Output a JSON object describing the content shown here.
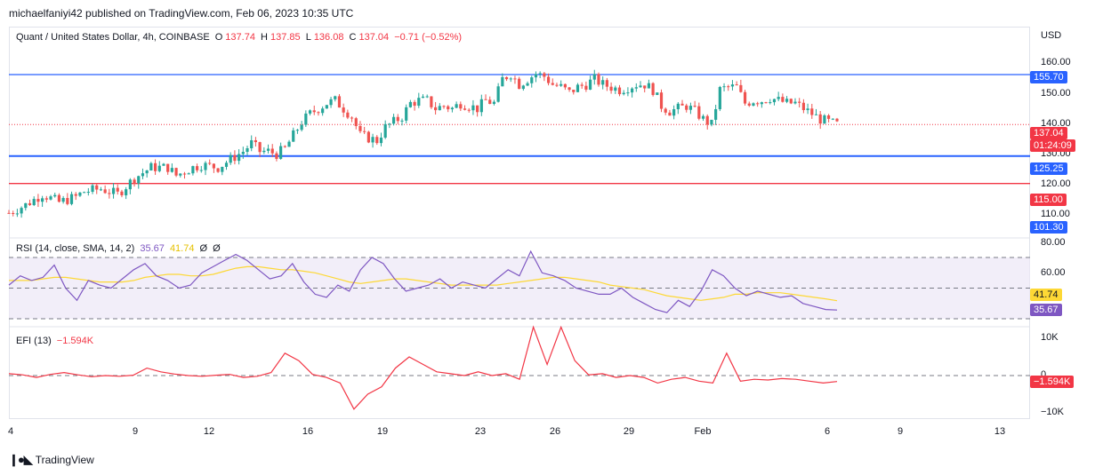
{
  "byline": "michaelfaniyi42 published on TradingView.com, Feb 06, 2023 10:35 UTC",
  "logo_text": "TradingView",
  "legend": {
    "symbol": "Quant / United States Dollar, 4h, COINBASE",
    "o_label": "O",
    "o_value": "137.74",
    "h_label": "H",
    "h_value": "137.85",
    "l_label": "L",
    "l_value": "136.08",
    "c_label": "C",
    "c_value": "137.04",
    "change": "−0.71 (−0.52%)"
  },
  "rsi_legend": {
    "name": "RSI (14, close, SMA, 14, 2)",
    "v1": "35.67",
    "v2": "41.74",
    "v3": "Ø",
    "v4": "Ø"
  },
  "efi_legend": {
    "name": "EFI (13)",
    "value": "−1.594K"
  },
  "price_axis": {
    "currency": "USD",
    "ticks": [
      "160.00",
      "150.00",
      "140.00",
      "130.00",
      "120.00",
      "110.00"
    ]
  },
  "rsi_axis": {
    "ticks": [
      "80.00",
      "60.00"
    ]
  },
  "efi_axis": {
    "ticks": [
      "10K",
      "0",
      "−10K"
    ]
  },
  "pills": {
    "level_155": "155.70",
    "last_price": "137.04",
    "countdown": "01:24:09",
    "level_125": "125.25",
    "level_115": "115.00",
    "level_101": "101.30",
    "rsi_sma": "41.74",
    "rsi_value": "35.67",
    "efi_value": "−1.594K"
  },
  "date_ticks": [
    "4",
    "9",
    "12",
    "16",
    "19",
    "23",
    "26",
    "29",
    "Feb",
    "6",
    "9",
    "13"
  ],
  "colors": {
    "up": "#26a69a",
    "down": "#ef5350",
    "support_blue": "#2962ff",
    "resistance_red": "#f23645",
    "rsi_line": "#7e57c2",
    "rsi_sma": "#fdd835",
    "efi_line": "#f23645",
    "rsi_band": "#ede7f6"
  },
  "chart_data": [
    {
      "type": "candlestick",
      "title": "Quant / United States Dollar, 4h, COINBASE",
      "ylabel": "USD",
      "ylim": [
        101.3,
        166.5
      ],
      "x_ticks": [
        "4",
        "9",
        "12",
        "16",
        "19",
        "23",
        "26",
        "29",
        "Feb",
        "6",
        "9",
        "13"
      ],
      "horizontal_levels": [
        155.7,
        125.25,
        115.0
      ],
      "last_price": 137.04,
      "close_path": [
        [
          0,
          104
        ],
        [
          4,
          107
        ],
        [
          8,
          111
        ],
        [
          12,
          108
        ],
        [
          16,
          110
        ],
        [
          18,
          112
        ],
        [
          22,
          113
        ],
        [
          24,
          112
        ],
        [
          26,
          111
        ],
        [
          28,
          114
        ],
        [
          30,
          117
        ],
        [
          32,
          119
        ],
        [
          34,
          121
        ],
        [
          38,
          121
        ],
        [
          40,
          118
        ],
        [
          44,
          121
        ],
        [
          46,
          122
        ],
        [
          50,
          121
        ],
        [
          54,
          125
        ],
        [
          56,
          127
        ],
        [
          58,
          130
        ],
        [
          60,
          127
        ],
        [
          62,
          127
        ],
        [
          64,
          126
        ],
        [
          66,
          128
        ],
        [
          68,
          133
        ],
        [
          70,
          138
        ],
        [
          72,
          141
        ],
        [
          74,
          143
        ],
        [
          76,
          145
        ],
        [
          78,
          146
        ],
        [
          80,
          143
        ],
        [
          82,
          140
        ],
        [
          84,
          133
        ],
        [
          86,
          132
        ],
        [
          88,
          131
        ],
        [
          90,
          136
        ],
        [
          92,
          138
        ],
        [
          94,
          140
        ],
        [
          96,
          145
        ],
        [
          98,
          146
        ],
        [
          100,
          146
        ],
        [
          102,
          143
        ],
        [
          104,
          144
        ],
        [
          106,
          143
        ],
        [
          108,
          145
        ],
        [
          110,
          144
        ],
        [
          112,
          143
        ],
        [
          114,
          146
        ],
        [
          116,
          145
        ],
        [
          118,
          154
        ],
        [
          120,
          156
        ],
        [
          122,
          152
        ],
        [
          124,
          154
        ],
        [
          126,
          156
        ],
        [
          128,
          155
        ],
        [
          130,
          152
        ],
        [
          132,
          151
        ],
        [
          134,
          149
        ],
        [
          136,
          151
        ],
        [
          138,
          152
        ],
        [
          140,
          154
        ],
        [
          142,
          152
        ],
        [
          144,
          151
        ],
        [
          146,
          150
        ],
        [
          148,
          151
        ],
        [
          150,
          152
        ],
        [
          152,
          152
        ],
        [
          154,
          150
        ],
        [
          156,
          144
        ],
        [
          158,
          142
        ],
        [
          160,
          143
        ],
        [
          162,
          144
        ],
        [
          164,
          142
        ],
        [
          166,
          139
        ],
        [
          168,
          137
        ],
        [
          170,
          150
        ],
        [
          172,
          151
        ],
        [
          174,
          151
        ],
        [
          176,
          145
        ],
        [
          178,
          146
        ],
        [
          180,
          146
        ],
        [
          182,
          147
        ],
        [
          184,
          146
        ],
        [
          186,
          145
        ],
        [
          188,
          145
        ],
        [
          190,
          143
        ],
        [
          192,
          141
        ],
        [
          194,
          139
        ],
        [
          196,
          138
        ],
        [
          198,
          137.04
        ]
      ]
    },
    {
      "type": "line",
      "title": "RSI (14, close, SMA, 14, 2)",
      "ylim": [
        30,
        80
      ],
      "bands": [
        70,
        30
      ],
      "series": [
        {
          "name": "RSI",
          "last": 35.67,
          "values": [
            52,
            58,
            55,
            57,
            65,
            50,
            42,
            55,
            52,
            50,
            56,
            62,
            66,
            58,
            55,
            50,
            52,
            60,
            64,
            68,
            72,
            68,
            62,
            56,
            58,
            66,
            54,
            46,
            44,
            52,
            48,
            62,
            70,
            66,
            56,
            48,
            50,
            52,
            56,
            50,
            54,
            52,
            50,
            56,
            62,
            58,
            74,
            60,
            58,
            55,
            50,
            48,
            46,
            46,
            50,
            44,
            40,
            36,
            34,
            42,
            38,
            48,
            62,
            58,
            50,
            45,
            48,
            46,
            44,
            45,
            40,
            38,
            36,
            35.67
          ]
        },
        {
          "name": "SMA",
          "last": 41.74,
          "values": [
            55,
            55,
            55,
            56,
            57,
            57,
            56,
            55,
            54,
            54,
            54,
            55,
            57,
            58,
            59,
            59,
            58,
            58,
            59,
            61,
            63,
            64,
            64,
            63,
            62,
            62,
            61,
            60,
            58,
            56,
            54,
            53,
            54,
            55,
            56,
            56,
            55,
            54,
            53,
            52,
            52,
            52,
            52,
            52,
            53,
            54,
            55,
            56,
            57,
            57,
            56,
            55,
            54,
            52,
            51,
            50,
            49,
            47,
            45,
            44,
            43,
            42,
            43,
            44,
            46,
            46,
            47,
            47,
            47,
            46,
            45,
            44,
            43,
            41.74
          ]
        }
      ]
    },
    {
      "type": "line",
      "title": "EFI (13)",
      "ylim": [
        -10000,
        10000
      ],
      "series": [
        {
          "name": "EFI",
          "last": -1594,
          "values": [
            500,
            200,
            -500,
            300,
            800,
            200,
            -300,
            0,
            -200,
            100,
            2000,
            1000,
            400,
            0,
            -200,
            100,
            300,
            -500,
            -200,
            800,
            6000,
            4000,
            300,
            -500,
            -2000,
            -9000,
            -5000,
            -3000,
            2000,
            5000,
            3000,
            1000,
            500,
            0,
            1000,
            0,
            500,
            -1000,
            14000,
            3000,
            15000,
            4000,
            200,
            500,
            -500,
            0,
            -500,
            -2000,
            -1000,
            -500,
            -1500,
            -2000,
            6000,
            -1500,
            -1000,
            -1200,
            -800,
            -1000,
            -1500,
            -2000,
            -1594
          ]
        }
      ]
    }
  ]
}
